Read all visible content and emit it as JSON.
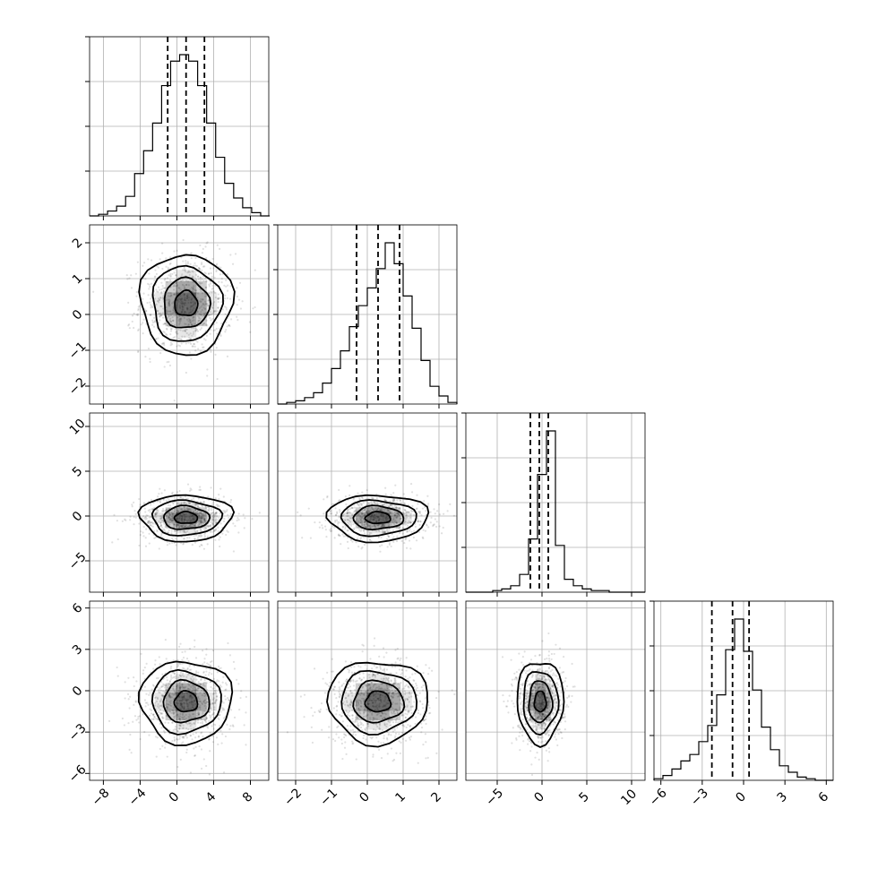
{
  "chart_data": {
    "type": "corner",
    "title": "",
    "n_params": 4,
    "param_labels": [
      "",
      "",
      "",
      ""
    ],
    "colors": {
      "ink": "#000000",
      "grid": "#b0b0b0",
      "density": "#000000"
    },
    "grid": true,
    "ranges": [
      [
        -9.5,
        10
      ],
      [
        -2.5,
        2.5
      ],
      [
        -8.5,
        11.5
      ],
      [
        -6.5,
        6.5
      ]
    ],
    "ticks": [
      [
        -8,
        -4,
        0,
        4,
        8
      ],
      [
        -2,
        -1,
        0,
        1,
        2
      ],
      [
        -5,
        0,
        5,
        10
      ],
      [
        -6,
        -3,
        0,
        3,
        6
      ]
    ],
    "tick_labels": [
      [
        "−8",
        "−4",
        "0",
        "4",
        "8"
      ],
      [
        "−2",
        "−1",
        "0",
        "1",
        "2"
      ],
      [
        "−5",
        "0",
        "5",
        "10"
      ],
      [
        "−6",
        "−3",
        "0",
        "3",
        "6"
      ]
    ],
    "quantiles": [
      [
        -1.0,
        1.0,
        3.0
      ],
      [
        -0.3,
        0.3,
        0.9
      ],
      [
        -1.3,
        -0.3,
        0.7
      ],
      [
        -2.3,
        -0.8,
        0.4
      ]
    ],
    "histograms": [
      {
        "start": -9.5,
        "width": 0.98,
        "counts": [
          0,
          1,
          3,
          6,
          12,
          26,
          40,
          57,
          80,
          95,
          99,
          95,
          80,
          57,
          36,
          20,
          11,
          5,
          2,
          0
        ]
      },
      {
        "start": -2.5,
        "width": 0.25,
        "counts": [
          0,
          1,
          2,
          4,
          7,
          13,
          22,
          33,
          48,
          61,
          72,
          84,
          100,
          87,
          67,
          47,
          27,
          11,
          5,
          1
        ]
      },
      {
        "start": -8.5,
        "width": 1.0,
        "counts": [
          0,
          0,
          0,
          1,
          2,
          4,
          11,
          33,
          73,
          100,
          29,
          8,
          4,
          2,
          1,
          1,
          0,
          0,
          0,
          0
        ]
      },
      {
        "start": -6.5,
        "width": 0.65,
        "counts": [
          1,
          3,
          7,
          12,
          16,
          24,
          34,
          53,
          81,
          100,
          80,
          56,
          33,
          19,
          9,
          5,
          2,
          1,
          0,
          0
        ]
      }
    ],
    "mean": [
      1.0,
      0.3,
      -0.2,
      -0.8
    ],
    "std": [
      2.5,
      0.7,
      1.3,
      1.5
    ]
  }
}
